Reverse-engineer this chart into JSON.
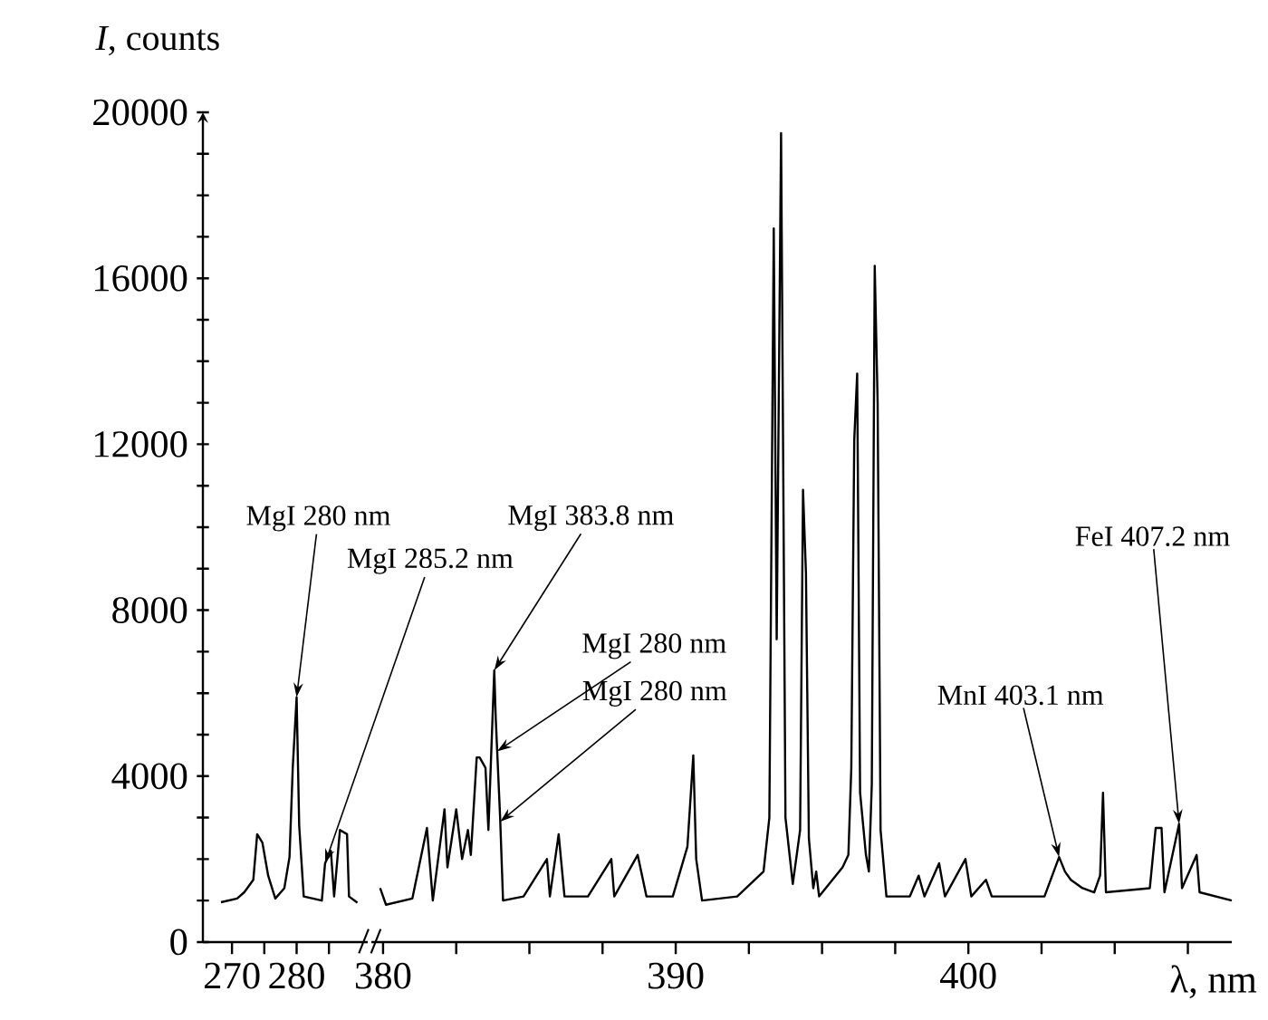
{
  "chart_data": [
    {
      "type": "line",
      "ylabel": "*I*, counts",
      "color": "#000000",
      "xlim": [
        265.5,
        291
      ],
      "ylim": [
        0,
        20000
      ],
      "xticks": [
        270,
        {
          "value": 275,
          "label": null
        },
        280,
        {
          "value": 285,
          "label": null
        }
      ],
      "yticks": [
        0,
        {
          "value": 1000,
          "label": null
        },
        {
          "value": 2000,
          "label": null
        },
        {
          "value": 3000,
          "label": null
        },
        4000,
        {
          "value": 5000,
          "label": null
        },
        {
          "value": 6000,
          "label": null
        },
        {
          "value": 7000,
          "label": null
        },
        8000,
        {
          "value": 9000,
          "label": null
        },
        {
          "value": 10000,
          "label": null
        },
        {
          "value": 11000,
          "label": null
        },
        12000,
        {
          "value": 13000,
          "label": null
        },
        {
          "value": 14000,
          "label": null
        },
        {
          "value": 15000,
          "label": null
        },
        16000,
        {
          "value": 17000,
          "label": null
        },
        {
          "value": 18000,
          "label": null
        },
        {
          "value": 19000,
          "label": null
        },
        20000
      ],
      "x": [
        268.3,
        270.8,
        271.9,
        273.3,
        273.9,
        274.7,
        275.6,
        276.7,
        278.1,
        278.9,
        279.4,
        280.0,
        280.4,
        281.1,
        283.9,
        284.4,
        285.3,
        285.8,
        286.7,
        287.8,
        288.1,
        289.4
      ],
      "values": [
        960,
        1050,
        1200,
        1500,
        2600,
        2400,
        1600,
        1050,
        1300,
        2050,
        4200,
        5900,
        2800,
        1100,
        1000,
        1900,
        2200,
        1100,
        2700,
        2600,
        1100,
        950
      ],
      "annotations": [
        {
          "text": "MgI 280 nm",
          "x": 280.0,
          "y": 5900
        },
        {
          "text": "MgI 285.2 nm",
          "x": 284.4,
          "y": 1900
        }
      ]
    },
    {
      "type": "line",
      "xlabel": "λ, nm",
      "color": "#000000",
      "xlim": [
        379.6,
        409
      ],
      "ylim": [
        0,
        20000
      ],
      "tick_labels": "x",
      "xticks": [
        380,
        {
          "value": 382.5,
          "label": null
        },
        {
          "value": 385,
          "label": null
        },
        {
          "value": 387.5,
          "label": null
        },
        390,
        {
          "value": 392.5,
          "label": null
        },
        {
          "value": 395,
          "label": null
        },
        {
          "value": 397.5,
          "label": null
        },
        400,
        {
          "value": 402.5,
          "label": null
        },
        {
          "value": 405,
          "label": null
        },
        {
          "value": 407.5,
          "label": null
        }
      ],
      "x": [
        379.9,
        380.1,
        380.7,
        381.0,
        381.5,
        381.7,
        382.1,
        382.2,
        382.5,
        382.7,
        382.9,
        383.0,
        383.2,
        383.3,
        383.5,
        383.6,
        383.8,
        383.85,
        384.0,
        384.1,
        384.8,
        385.6,
        385.7,
        386.0,
        386.2,
        387.0,
        387.8,
        387.9,
        388.7,
        389.0,
        389.9,
        390.4,
        390.6,
        390.7,
        390.9,
        392.1,
        393.0,
        393.2,
        393.35,
        393.45,
        393.6,
        393.75,
        394.0,
        394.25,
        394.35,
        394.45,
        394.55,
        394.7,
        394.8,
        394.9,
        395.7,
        395.9,
        396.0,
        396.1,
        396.2,
        396.3,
        396.5,
        396.6,
        396.7,
        396.8,
        396.9,
        397.0,
        397.2,
        398.0,
        398.3,
        398.5,
        399.0,
        399.2,
        399.9,
        400.1,
        400.6,
        400.8,
        402.6,
        403.1,
        403.3,
        403.5,
        403.9,
        404.3,
        404.5,
        404.6,
        404.7,
        406.2,
        406.4,
        406.6,
        406.7,
        407.2,
        407.3,
        407.8,
        407.9,
        409.0
      ],
      "values": [
        1300,
        900,
        1000,
        1050,
        2750,
        1000,
        3200,
        1800,
        3200,
        2000,
        2700,
        2100,
        4450,
        4450,
        4200,
        2700,
        6550,
        5400,
        3000,
        1000,
        1100,
        2000,
        1100,
        2600,
        1100,
        1100,
        2000,
        1100,
        2100,
        1100,
        1100,
        2300,
        4500,
        2000,
        1000,
        1100,
        1700,
        3000,
        17200,
        7300,
        19500,
        3000,
        1400,
        2700,
        10900,
        8900,
        2500,
        1300,
        1700,
        1100,
        1800,
        2100,
        4200,
        12100,
        13700,
        3600,
        2100,
        1700,
        3800,
        16300,
        13000,
        2700,
        1100,
        1100,
        1600,
        1100,
        1900,
        1100,
        2000,
        1100,
        1500,
        1100,
        1100,
        2050,
        1700,
        1500,
        1300,
        1200,
        1600,
        3600,
        1200,
        1300,
        2750,
        2750,
        1200,
        2850,
        1300,
        2100,
        1200,
        1000
      ],
      "annotations": [
        {
          "text": "MgI 383.8 nm",
          "x": 383.8,
          "y": 6550
        },
        {
          "text": "MgI 280 nm",
          "x": 383.9,
          "y": 4600
        },
        {
          "text": "MgI 280 nm",
          "x": 384.0,
          "y": 2900
        },
        {
          "text": "MnI 403.1 nm",
          "x": 403.1,
          "y": 2050
        },
        {
          "text": "FeI 407.2 nm",
          "x": 407.2,
          "y": 2850
        }
      ]
    }
  ]
}
